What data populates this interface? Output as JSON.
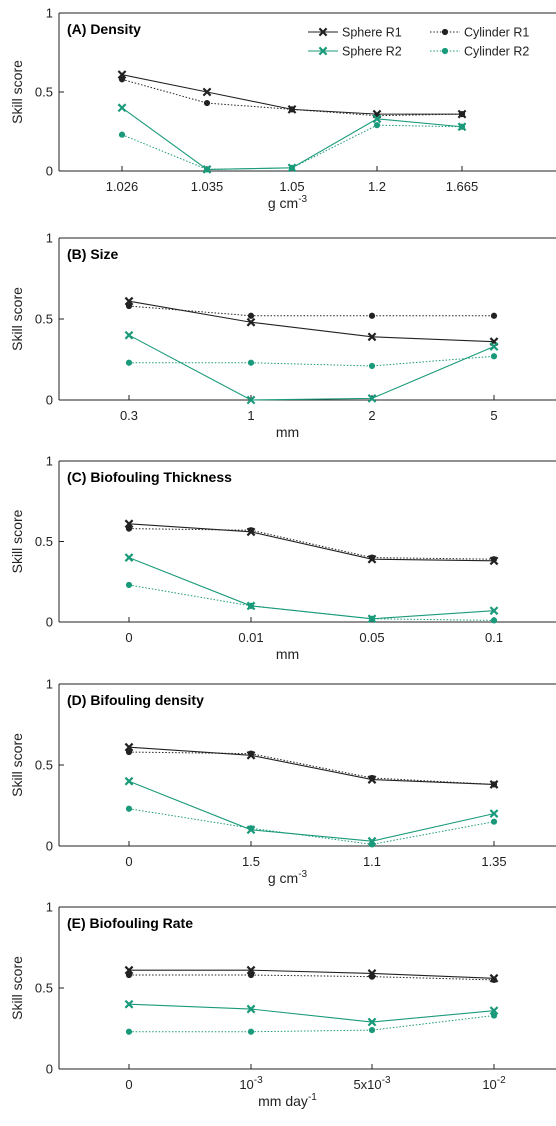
{
  "colors": {
    "r1": "#222222",
    "r2": "#1a9a7a",
    "axis": "#222222"
  },
  "legend": {
    "placement": "top-right",
    "entries": [
      {
        "label": "Sphere R1",
        "series": "sphere_r1"
      },
      {
        "label": "Cylinder R1",
        "series": "cylinder_r1"
      },
      {
        "label": "Sphere R2",
        "series": "sphere_r2"
      },
      {
        "label": "Cylinder R2",
        "series": "cylinder_r2"
      }
    ]
  },
  "chart_data": [
    {
      "type": "line",
      "title": "(A) Density",
      "ylabel": "Skill score",
      "xlabel": {
        "base": "g cm",
        "sup": "-3"
      },
      "ylim": [
        0,
        1
      ],
      "yticks": [
        "0",
        "0.5",
        "1"
      ],
      "categories": [
        {
          "base": "1.026"
        },
        {
          "base": "1.035"
        },
        {
          "base": "1.05"
        },
        {
          "base": "1.2"
        },
        {
          "base": "1.665"
        }
      ],
      "series": [
        {
          "name": "Sphere R1",
          "key": "sphere_r1",
          "values": [
            0.61,
            0.5,
            0.39,
            0.36,
            0.36
          ]
        },
        {
          "name": "Cylinder R1",
          "key": "cylinder_r1",
          "values": [
            0.58,
            0.43,
            0.39,
            0.35,
            0.36
          ]
        },
        {
          "name": "Sphere R2",
          "key": "sphere_r2",
          "values": [
            0.4,
            0.01,
            0.02,
            0.33,
            0.28
          ]
        },
        {
          "name": "Cylinder R2",
          "key": "cylinder_r2",
          "values": [
            0.23,
            0.01,
            0.02,
            0.29,
            0.28
          ]
        }
      ]
    },
    {
      "type": "line",
      "title": "(B) Size",
      "ylabel": "Skill score",
      "xlabel": {
        "base": "mm"
      },
      "ylim": [
        0,
        1
      ],
      "yticks": [
        "0",
        "0.5",
        "1"
      ],
      "categories": [
        {
          "base": "0.3"
        },
        {
          "base": "1"
        },
        {
          "base": "2"
        },
        {
          "base": "5"
        }
      ],
      "series": [
        {
          "name": "Sphere R1",
          "key": "sphere_r1",
          "values": [
            0.61,
            0.48,
            0.39,
            0.36
          ]
        },
        {
          "name": "Cylinder R1",
          "key": "cylinder_r1",
          "values": [
            0.58,
            0.52,
            0.52,
            0.52
          ]
        },
        {
          "name": "Sphere R2",
          "key": "sphere_r2",
          "values": [
            0.4,
            0.0,
            0.01,
            0.33
          ]
        },
        {
          "name": "Cylinder R2",
          "key": "cylinder_r2",
          "values": [
            0.23,
            0.23,
            0.21,
            0.27
          ]
        }
      ]
    },
    {
      "type": "line",
      "title": "(C) Biofouling Thickness",
      "ylabel": "Skill score",
      "xlabel": {
        "base": "mm"
      },
      "ylim": [
        0,
        1
      ],
      "yticks": [
        "0",
        "0.5",
        "1"
      ],
      "categories": [
        {
          "base": "0"
        },
        {
          "base": "0.01"
        },
        {
          "base": "0.05"
        },
        {
          "base": "0.1"
        }
      ],
      "series": [
        {
          "name": "Sphere R1",
          "key": "sphere_r1",
          "values": [
            0.61,
            0.56,
            0.39,
            0.38
          ]
        },
        {
          "name": "Cylinder R1",
          "key": "cylinder_r1",
          "values": [
            0.58,
            0.57,
            0.4,
            0.39
          ]
        },
        {
          "name": "Sphere R2",
          "key": "sphere_r2",
          "values": [
            0.4,
            0.1,
            0.02,
            0.07
          ]
        },
        {
          "name": "Cylinder R2",
          "key": "cylinder_r2",
          "values": [
            0.23,
            0.1,
            0.02,
            0.01
          ]
        }
      ]
    },
    {
      "type": "line",
      "title": "(D) Bifouling density",
      "ylabel": "Skill score",
      "xlabel": {
        "base": "g cm",
        "sup": "-3"
      },
      "ylim": [
        0,
        1
      ],
      "yticks": [
        "0",
        "0.5",
        "1"
      ],
      "categories": [
        {
          "base": "0"
        },
        {
          "base": "1.5"
        },
        {
          "base": "1.1"
        },
        {
          "base": "1.35"
        }
      ],
      "series": [
        {
          "name": "Sphere R1",
          "key": "sphere_r1",
          "values": [
            0.61,
            0.56,
            0.41,
            0.38
          ]
        },
        {
          "name": "Cylinder R1",
          "key": "cylinder_r1",
          "values": [
            0.58,
            0.57,
            0.42,
            0.38
          ]
        },
        {
          "name": "Sphere R2",
          "key": "sphere_r2",
          "values": [
            0.4,
            0.1,
            0.03,
            0.2
          ]
        },
        {
          "name": "Cylinder R2",
          "key": "cylinder_r2",
          "values": [
            0.23,
            0.11,
            0.01,
            0.15
          ]
        }
      ]
    },
    {
      "type": "line",
      "title": "(E) Biofouling Rate",
      "ylabel": "Skill score",
      "xlabel": {
        "base": "mm day",
        "sup": "-1"
      },
      "ylim": [
        0,
        1
      ],
      "yticks": [
        "0",
        "0.5",
        "1"
      ],
      "categories": [
        {
          "base": "0"
        },
        {
          "base": "10",
          "sup": "-3"
        },
        {
          "base": "5x10",
          "sup": "-3"
        },
        {
          "base": "10",
          "sup": "-2"
        }
      ],
      "series": [
        {
          "name": "Sphere R1",
          "key": "sphere_r1",
          "values": [
            0.61,
            0.61,
            0.59,
            0.56
          ]
        },
        {
          "name": "Cylinder R1",
          "key": "cylinder_r1",
          "values": [
            0.58,
            0.58,
            0.57,
            0.55
          ]
        },
        {
          "name": "Sphere R2",
          "key": "sphere_r2",
          "values": [
            0.4,
            0.37,
            0.29,
            0.36
          ]
        },
        {
          "name": "Cylinder R2",
          "key": "cylinder_r2",
          "values": [
            0.23,
            0.23,
            0.24,
            0.33
          ]
        }
      ]
    }
  ]
}
